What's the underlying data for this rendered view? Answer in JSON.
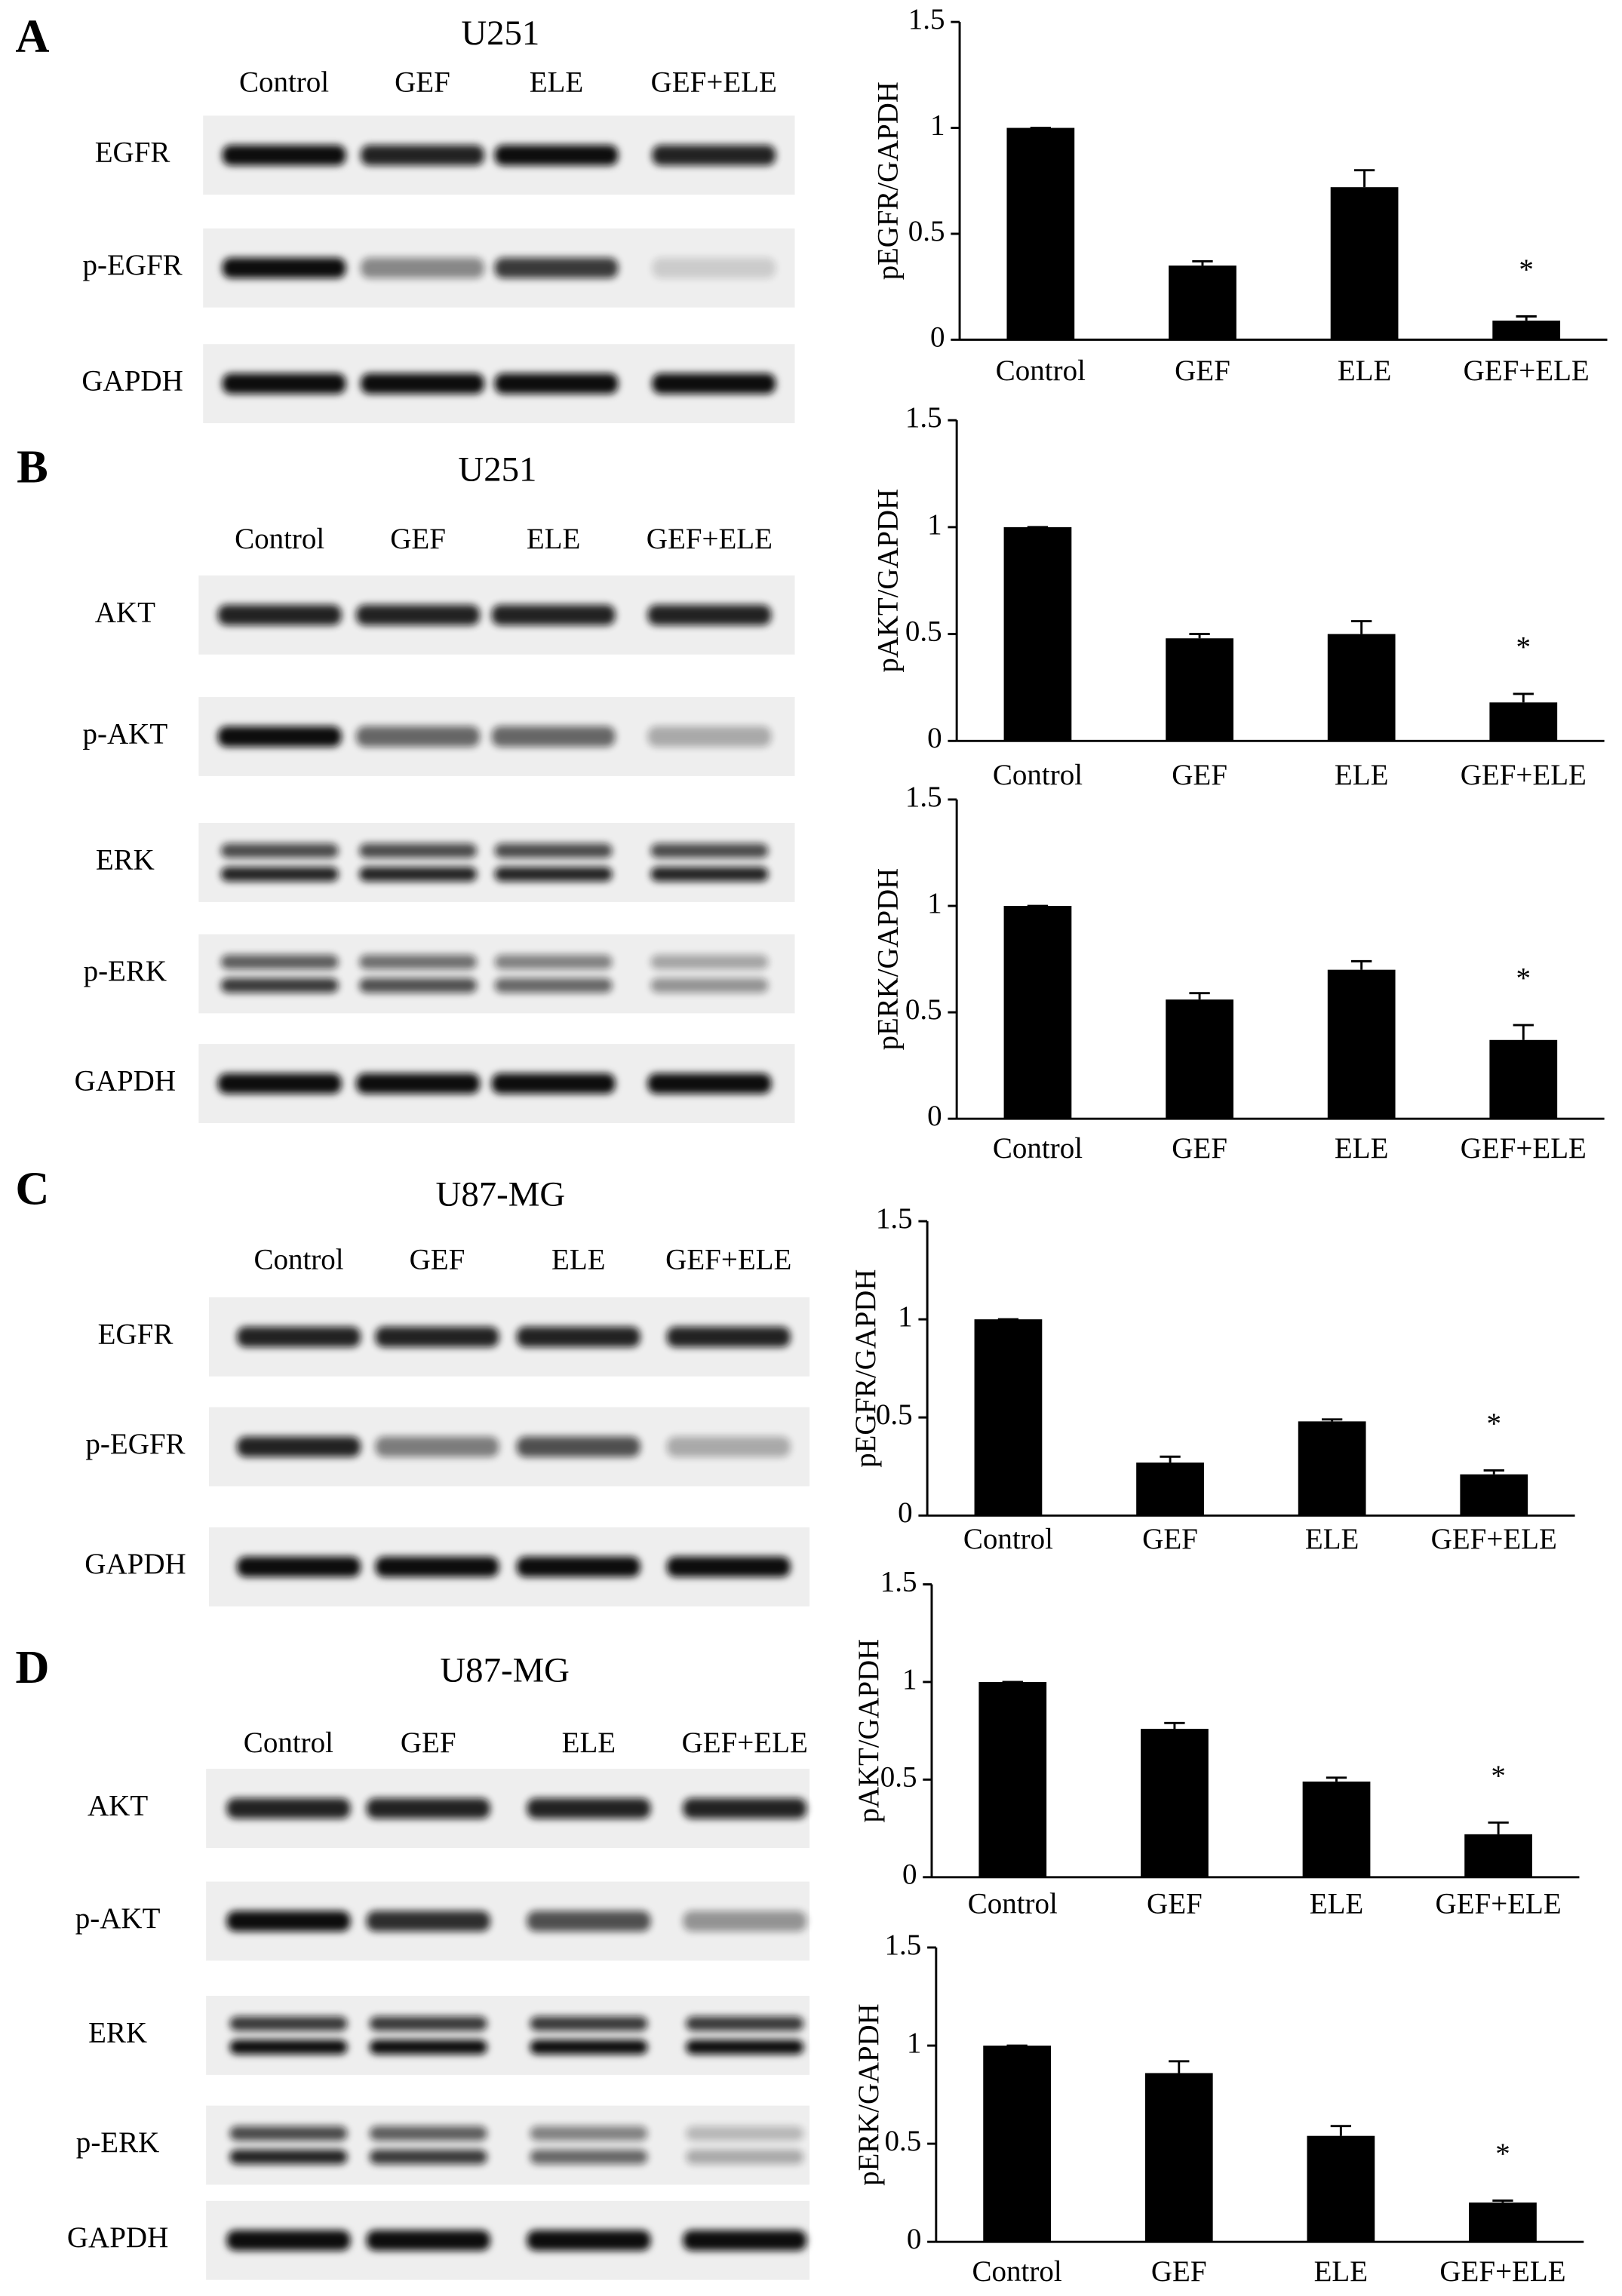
{
  "blots": [
    {
      "letter": "A",
      "cell_line": "U251",
      "lanes": [
        "Control",
        "GEF",
        "ELE",
        "GEF+ELE"
      ],
      "rows": [
        "EGFR",
        "p-EGFR",
        "GAPDH"
      ]
    },
    {
      "letter": "B",
      "cell_line": "U251",
      "lanes": [
        "Control",
        "GEF",
        "ELE",
        "GEF+ELE"
      ],
      "rows": [
        "AKT",
        "p-AKT",
        "ERK",
        "p-ERK",
        "GAPDH"
      ]
    },
    {
      "letter": "C",
      "cell_line": "U87-MG",
      "lanes": [
        "Control",
        "GEF",
        "ELE",
        "GEF+ELE"
      ],
      "rows": [
        "EGFR",
        "p-EGFR",
        "GAPDH"
      ]
    },
    {
      "letter": "D",
      "cell_line": "U87-MG",
      "lanes": [
        "Control",
        "GEF",
        "ELE",
        "GEF+ELE"
      ],
      "rows": [
        "AKT",
        "p-AKT",
        "ERK",
        "p-ERK",
        "GAPDH"
      ]
    }
  ],
  "chart_data": [
    {
      "type": "bar",
      "y_label": "pEGFR/GAPDH",
      "categories": [
        "Control",
        "GEF",
        "ELE",
        "GEF+ELE"
      ],
      "values": [
        1,
        0.35,
        0.72,
        0.09
      ],
      "errors": [
        0,
        0.02,
        0.08,
        0.02
      ],
      "color": "#000000",
      "ylim": [
        0,
        1.5
      ],
      "yticks": [
        0,
        0.5,
        1,
        1.5
      ],
      "annotation": {
        "text": "*",
        "category": "GEF+ELE"
      }
    },
    {
      "type": "bar",
      "y_label": "pAKT/GAPDH",
      "categories": [
        "Control",
        "GEF",
        "ELE",
        "GEF+ELE"
      ],
      "values": [
        1,
        0.48,
        0.5,
        0.18
      ],
      "errors": [
        0,
        0.02,
        0.06,
        0.04
      ],
      "color": "#000000",
      "ylim": [
        0,
        1.5
      ],
      "yticks": [
        0,
        0.5,
        1,
        1.5
      ],
      "annotation": {
        "text": "*",
        "category": "GEF+ELE"
      }
    },
    {
      "type": "bar",
      "y_label": "pERK/GAPDH",
      "categories": [
        "Control",
        "GEF",
        "ELE",
        "GEF+ELE"
      ],
      "values": [
        1,
        0.56,
        0.7,
        0.37
      ],
      "errors": [
        0,
        0.03,
        0.04,
        0.07
      ],
      "color": "#000000",
      "ylim": [
        0,
        1.5
      ],
      "yticks": [
        0,
        0.5,
        1,
        1.5
      ],
      "annotation": {
        "text": "*",
        "category": "GEF+ELE"
      }
    },
    {
      "type": "bar",
      "y_label": "pEGFR/GAPDH",
      "categories": [
        "Control",
        "GEF",
        "ELE",
        "GEF+ELE"
      ],
      "values": [
        1,
        0.27,
        0.48,
        0.21
      ],
      "errors": [
        0,
        0.03,
        0.01,
        0.02
      ],
      "color": "#000000",
      "ylim": [
        0,
        1.5
      ],
      "yticks": [
        0,
        0.5,
        1,
        1.5
      ],
      "annotation": {
        "text": "*",
        "category": "GEF+ELE"
      }
    },
    {
      "type": "bar",
      "y_label": "pAKT/GAPDH",
      "categories": [
        "Control",
        "GEF",
        "ELE",
        "GEF+ELE"
      ],
      "values": [
        1,
        0.76,
        0.49,
        0.22
      ],
      "errors": [
        0,
        0.03,
        0.02,
        0.06
      ],
      "color": "#000000",
      "ylim": [
        0,
        1.5
      ],
      "yticks": [
        0,
        0.5,
        1,
        1.5
      ],
      "annotation": {
        "text": "*",
        "category": "GEF+ELE"
      }
    },
    {
      "type": "bar",
      "y_label": "pERK/GAPDH",
      "categories": [
        "Control",
        "GEF",
        "ELE",
        "GEF+ELE"
      ],
      "values": [
        1,
        0.86,
        0.54,
        0.2
      ],
      "errors": [
        0,
        0.06,
        0.05,
        0.01
      ],
      "color": "#000000",
      "ylim": [
        0,
        1.5
      ],
      "yticks": [
        0,
        0.5,
        1,
        1.5
      ],
      "annotation": {
        "text": "*",
        "category": "GEF+ELE"
      }
    }
  ]
}
